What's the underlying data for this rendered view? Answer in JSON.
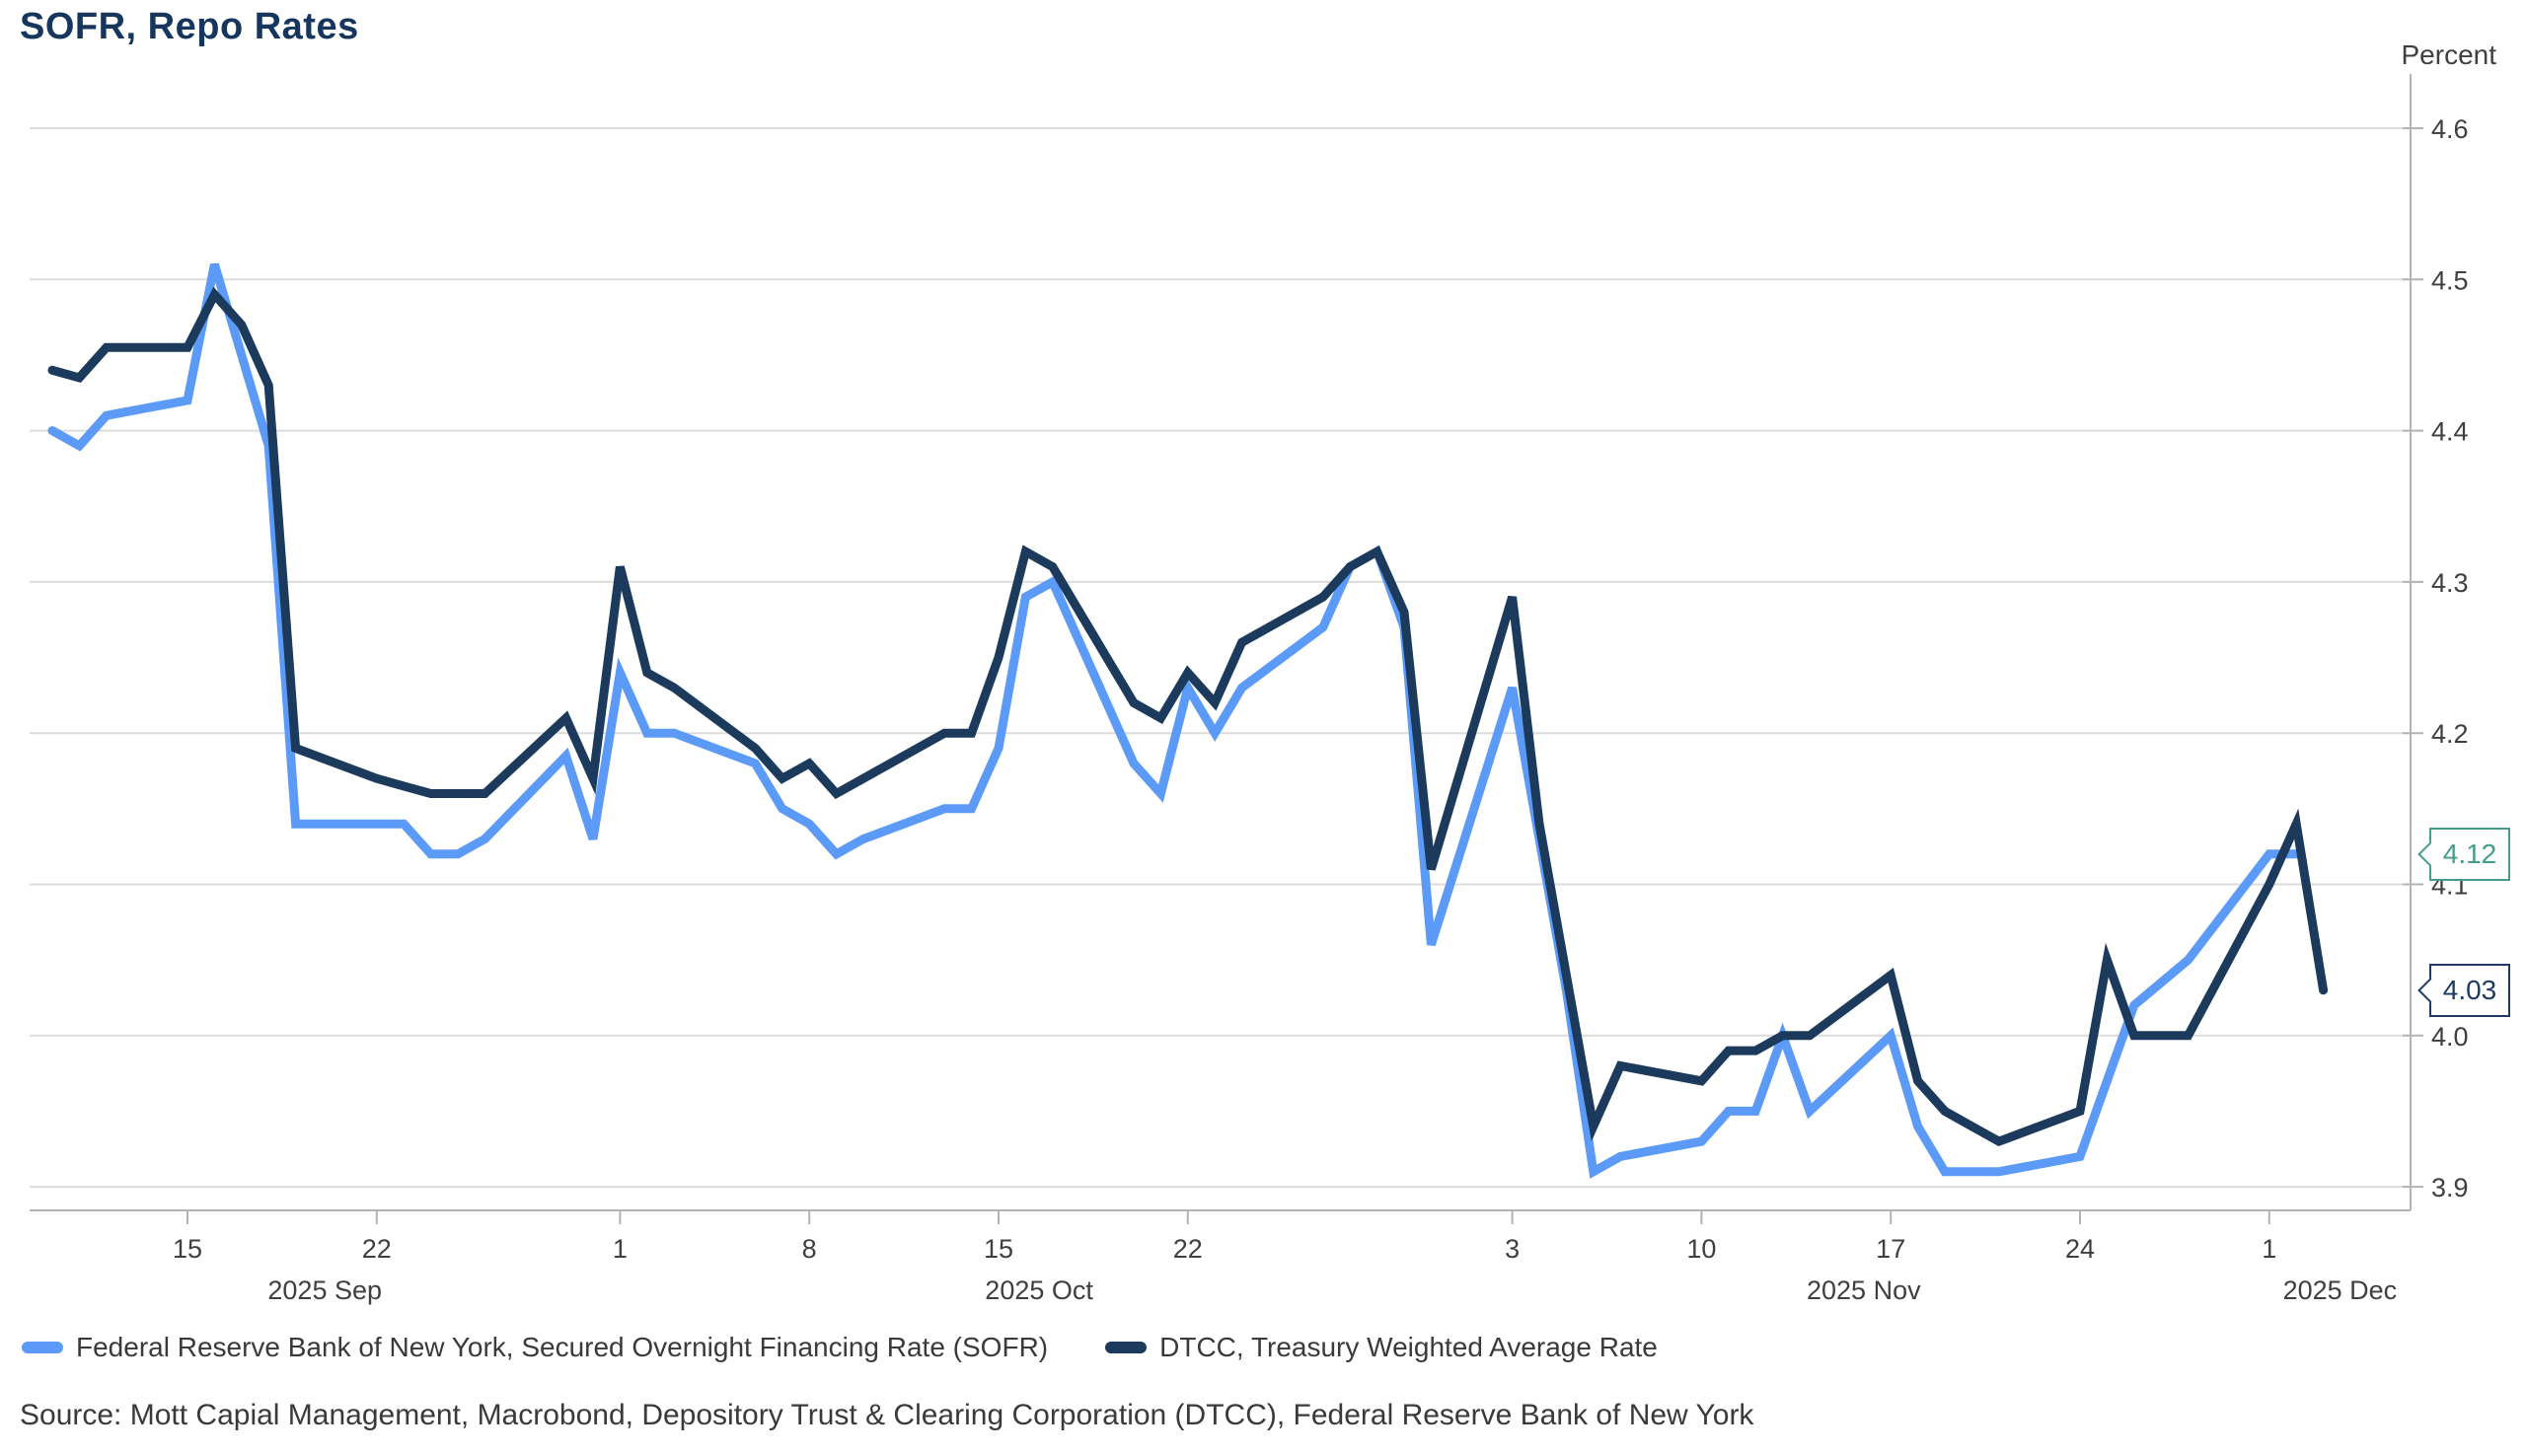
{
  "title": "SOFR, Repo Rates",
  "y_axis_title": "Percent",
  "source": "Source: Mott Capial Management, Macrobond, Depository Trust & Clearing Corporation (DTCC), Federal Reserve Bank of New York",
  "colors": {
    "sofr_line": "#5b9bf7",
    "dtcc_line": "#1b3a5c",
    "title_text": "#17365d",
    "axis_text": "#3f3f3f",
    "gridline": "#dcdcdc",
    "axis_line": "#b3b3b3"
  },
  "legend": {
    "items": [
      {
        "label": "Federal Reserve Bank of New York, Secured Overnight Financing Rate (SOFR)",
        "color": "#5b9bf7"
      },
      {
        "label": "DTCC, Treasury Weighted Average Rate",
        "color": "#1b3a5c"
      }
    ]
  },
  "callouts": {
    "sofr": {
      "value": "4.12",
      "color": "#459c8c"
    },
    "dtcc": {
      "value": "4.03",
      "color": "#1f3a63"
    }
  },
  "chart_data": {
    "type": "line",
    "title": "SOFR, Repo Rates",
    "ylabel": "Percent",
    "ylim": [
      3.9,
      4.6
    ],
    "grid": "horizontal",
    "legend_position": "bottom",
    "y_ticks": [
      "4.6",
      "4.5",
      "4.4",
      "4.3",
      "4.2",
      "4.1",
      "4.0",
      "3.9"
    ],
    "x_ticks": [
      {
        "date": "2025-09-15",
        "label": "15"
      },
      {
        "date": "2025-09-22",
        "label": "22"
      },
      {
        "date": "2025-10-01",
        "label": "1"
      },
      {
        "date": "2025-10-08",
        "label": "8"
      },
      {
        "date": "2025-10-15",
        "label": "15"
      },
      {
        "date": "2025-10-22",
        "label": "22"
      },
      {
        "date": "2025-11-03",
        "label": "3"
      },
      {
        "date": "2025-11-10",
        "label": "10"
      },
      {
        "date": "2025-11-17",
        "label": "17"
      },
      {
        "date": "2025-11-24",
        "label": "24"
      },
      {
        "date": "2025-12-01",
        "label": "1"
      }
    ],
    "month_labels": [
      {
        "label": "2025 Sep",
        "start": "2025-09-01",
        "end": "2025-10-01"
      },
      {
        "label": "2025 Oct",
        "start": "2025-10-01",
        "end": "2025-11-01"
      },
      {
        "label": "2025 Nov",
        "start": "2025-11-01",
        "end": "2025-12-01"
      },
      {
        "label": "2025 Dec",
        "start": "2025-12-01",
        "end": "2025-12-07"
      }
    ],
    "series": [
      {
        "name": "Federal Reserve Bank of New York, Secured Overnight Financing Rate (SOFR)",
        "color": "#5b9bf7",
        "last_value_label": "4.12",
        "points": [
          [
            "2025-09-10",
            4.4
          ],
          [
            "2025-09-11",
            4.39
          ],
          [
            "2025-09-12",
            4.41
          ],
          [
            "2025-09-15",
            4.42
          ],
          [
            "2025-09-16",
            4.51
          ],
          [
            "2025-09-17",
            4.45
          ],
          [
            "2025-09-18",
            4.39
          ],
          [
            "2025-09-19",
            4.14
          ],
          [
            "2025-09-22",
            4.14
          ],
          [
            "2025-09-23",
            4.14
          ],
          [
            "2025-09-24",
            4.12
          ],
          [
            "2025-09-25",
            4.12
          ],
          [
            "2025-09-26",
            4.13
          ],
          [
            "2025-09-29",
            4.185
          ],
          [
            "2025-09-30",
            4.13
          ],
          [
            "2025-10-01",
            4.24
          ],
          [
            "2025-10-02",
            4.2
          ],
          [
            "2025-10-03",
            4.2
          ],
          [
            "2025-10-06",
            4.18
          ],
          [
            "2025-10-07",
            4.15
          ],
          [
            "2025-10-08",
            4.14
          ],
          [
            "2025-10-09",
            4.12
          ],
          [
            "2025-10-10",
            4.13
          ],
          [
            "2025-10-13",
            4.15
          ],
          [
            "2025-10-14",
            4.15
          ],
          [
            "2025-10-15",
            4.19
          ],
          [
            "2025-10-16",
            4.29
          ],
          [
            "2025-10-17",
            4.3
          ],
          [
            "2025-10-20",
            4.18
          ],
          [
            "2025-10-21",
            4.16
          ],
          [
            "2025-10-22",
            4.23
          ],
          [
            "2025-10-23",
            4.2
          ],
          [
            "2025-10-24",
            4.23
          ],
          [
            "2025-10-27",
            4.27
          ],
          [
            "2025-10-28",
            4.31
          ],
          [
            "2025-10-29",
            4.32
          ],
          [
            "2025-10-30",
            4.27
          ],
          [
            "2025-10-31",
            4.06
          ],
          [
            "2025-11-03",
            4.23
          ],
          [
            "2025-11-04",
            4.13
          ],
          [
            "2025-11-05",
            4.03
          ],
          [
            "2025-11-06",
            3.91
          ],
          [
            "2025-11-07",
            3.92
          ],
          [
            "2025-11-10",
            3.93
          ],
          [
            "2025-11-11",
            3.95
          ],
          [
            "2025-11-12",
            3.95
          ],
          [
            "2025-11-13",
            4.0
          ],
          [
            "2025-11-14",
            3.95
          ],
          [
            "2025-11-17",
            4.0
          ],
          [
            "2025-11-18",
            3.94
          ],
          [
            "2025-11-19",
            3.91
          ],
          [
            "2025-11-20",
            3.91
          ],
          [
            "2025-11-21",
            3.91
          ],
          [
            "2025-11-24",
            3.92
          ],
          [
            "2025-11-25",
            3.97
          ],
          [
            "2025-11-26",
            4.02
          ],
          [
            "2025-11-28",
            4.05
          ],
          [
            "2025-12-01",
            4.12
          ],
          [
            "2025-12-02",
            4.12
          ]
        ]
      },
      {
        "name": "DTCC, Treasury Weighted Average Rate",
        "color": "#1b3a5c",
        "last_value_label": "4.03",
        "points": [
          [
            "2025-09-10",
            4.44
          ],
          [
            "2025-09-11",
            4.435
          ],
          [
            "2025-09-12",
            4.455
          ],
          [
            "2025-09-15",
            4.455
          ],
          [
            "2025-09-16",
            4.49
          ],
          [
            "2025-09-17",
            4.47
          ],
          [
            "2025-09-18",
            4.43
          ],
          [
            "2025-09-19",
            4.19
          ],
          [
            "2025-09-22",
            4.17
          ],
          [
            "2025-09-23",
            4.165
          ],
          [
            "2025-09-24",
            4.16
          ],
          [
            "2025-09-25",
            4.16
          ],
          [
            "2025-09-26",
            4.16
          ],
          [
            "2025-09-29",
            4.21
          ],
          [
            "2025-09-30",
            4.17
          ],
          [
            "2025-10-01",
            4.31
          ],
          [
            "2025-10-02",
            4.24
          ],
          [
            "2025-10-03",
            4.23
          ],
          [
            "2025-10-06",
            4.19
          ],
          [
            "2025-10-07",
            4.17
          ],
          [
            "2025-10-08",
            4.18
          ],
          [
            "2025-10-09",
            4.16
          ],
          [
            "2025-10-10",
            4.17
          ],
          [
            "2025-10-13",
            4.2
          ],
          [
            "2025-10-14",
            4.2
          ],
          [
            "2025-10-15",
            4.25
          ],
          [
            "2025-10-16",
            4.32
          ],
          [
            "2025-10-17",
            4.31
          ],
          [
            "2025-10-20",
            4.22
          ],
          [
            "2025-10-21",
            4.21
          ],
          [
            "2025-10-22",
            4.24
          ],
          [
            "2025-10-23",
            4.22
          ],
          [
            "2025-10-24",
            4.26
          ],
          [
            "2025-10-27",
            4.29
          ],
          [
            "2025-10-28",
            4.31
          ],
          [
            "2025-10-29",
            4.32
          ],
          [
            "2025-10-30",
            4.28
          ],
          [
            "2025-10-31",
            4.11
          ],
          [
            "2025-11-03",
            4.29
          ],
          [
            "2025-11-04",
            4.14
          ],
          [
            "2025-11-05",
            4.04
          ],
          [
            "2025-11-06",
            3.94
          ],
          [
            "2025-11-07",
            3.98
          ],
          [
            "2025-11-10",
            3.97
          ],
          [
            "2025-11-11",
            3.99
          ],
          [
            "2025-11-12",
            3.99
          ],
          [
            "2025-11-13",
            4.0
          ],
          [
            "2025-11-14",
            4.0
          ],
          [
            "2025-11-17",
            4.04
          ],
          [
            "2025-11-18",
            3.97
          ],
          [
            "2025-11-19",
            3.95
          ],
          [
            "2025-11-20",
            3.94
          ],
          [
            "2025-11-21",
            3.93
          ],
          [
            "2025-11-24",
            3.95
          ],
          [
            "2025-11-25",
            4.05
          ],
          [
            "2025-11-26",
            4.0
          ],
          [
            "2025-11-28",
            4.0
          ],
          [
            "2025-12-01",
            4.1
          ],
          [
            "2025-12-02",
            4.14
          ],
          [
            "2025-12-03",
            4.03
          ]
        ]
      }
    ]
  }
}
